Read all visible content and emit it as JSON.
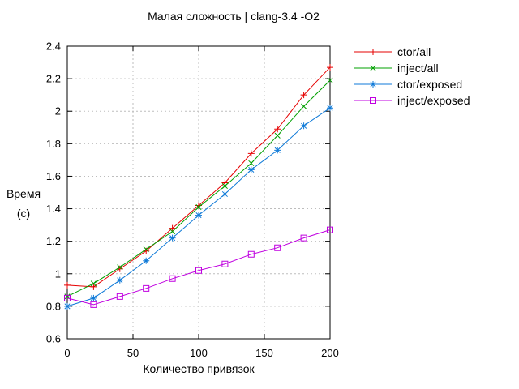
{
  "title": "Малая сложность | clang-3.4 -O2",
  "axis": {
    "frame_color": "#000000",
    "grid_color": "#bdbdbd",
    "text_color": "#000000",
    "background": "#ffffff"
  },
  "chart_data": {
    "type": "line",
    "title": "Малая сложность | clang-3.4 -O2",
    "xlabel": "Количество привязок",
    "ylabel_line1": "Время",
    "ylabel_line2": "(с)",
    "xlim": [
      0,
      200
    ],
    "ylim": [
      0.6,
      2.4
    ],
    "xticks": [
      0,
      50,
      100,
      150,
      200
    ],
    "xtick_labels": [
      "0",
      "50",
      "100",
      "150",
      "200"
    ],
    "yticks": [
      0.6,
      0.8,
      1.0,
      1.2,
      1.4,
      1.6,
      1.8,
      2.0,
      2.2,
      2.4
    ],
    "ytick_labels": [
      "0.6",
      "0.8",
      "1",
      "1.2",
      "1.4",
      "1.6",
      "1.8",
      "2",
      "2.2",
      "2.4"
    ],
    "grid": true,
    "legend_position": "outside-top-right",
    "x": [
      0,
      20,
      40,
      60,
      80,
      100,
      120,
      140,
      160,
      180,
      200
    ],
    "series": [
      {
        "name": "ctor/all",
        "color": "#e60000",
        "marker": "plus",
        "values": [
          0.93,
          0.92,
          1.03,
          1.14,
          1.28,
          1.42,
          1.56,
          1.74,
          1.89,
          2.1,
          2.27
        ]
      },
      {
        "name": "inject/all",
        "color": "#00a000",
        "marker": "cross",
        "values": [
          0.86,
          0.94,
          1.04,
          1.15,
          1.26,
          1.41,
          1.54,
          1.68,
          1.85,
          2.03,
          2.19
        ]
      },
      {
        "name": "ctor/exposed",
        "color": "#0f7ad8",
        "marker": "asterisk",
        "values": [
          0.8,
          0.85,
          0.96,
          1.08,
          1.22,
          1.36,
          1.49,
          1.64,
          1.76,
          1.91,
          2.02
        ]
      },
      {
        "name": "inject/exposed",
        "color": "#c000e0",
        "marker": "square",
        "values": [
          0.85,
          0.81,
          0.86,
          0.91,
          0.97,
          1.02,
          1.06,
          1.12,
          1.16,
          1.22,
          1.27
        ]
      }
    ]
  }
}
